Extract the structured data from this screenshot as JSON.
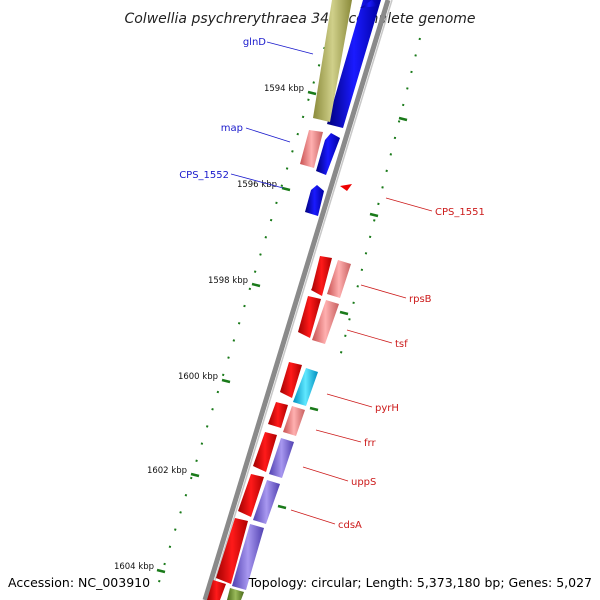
{
  "title": "Colwellia psychrerythraea 34H, complete genome",
  "footer": {
    "accession": "Accession: NC_003910",
    "topology": "Topology: circular; Length: 5,373,180 bp; Genes: 5,027"
  },
  "ticks": [
    "1594 kbp",
    "1596 kbp",
    "1598 kbp",
    "1600 kbp",
    "1602 kbp",
    "1604 kbp"
  ],
  "gene_labels": [
    {
      "name": "glnD",
      "strand": "forward",
      "color": "#1a1acc"
    },
    {
      "name": "map",
      "strand": "forward",
      "color": "#1a1acc"
    },
    {
      "name": "CPS_1552",
      "strand": "forward",
      "color": "#1a1acc"
    },
    {
      "name": "CPS_1551",
      "strand": "reverse",
      "color": "#cc1a1a"
    },
    {
      "name": "rpsB",
      "strand": "reverse",
      "color": "#cc1a1a"
    },
    {
      "name": "tsf",
      "strand": "reverse",
      "color": "#cc1a1a"
    },
    {
      "name": "pyrH",
      "strand": "reverse",
      "color": "#cc1a1a"
    },
    {
      "name": "frr",
      "strand": "reverse",
      "color": "#cc1a1a"
    },
    {
      "name": "uppS",
      "strand": "reverse",
      "color": "#cc1a1a"
    },
    {
      "name": "cdsA",
      "strand": "reverse",
      "color": "#cc1a1a"
    }
  ],
  "colors": {
    "forward_gene": "#0000ee",
    "reverse_gene": "#ee0000",
    "cog_olive": "#a8a84a",
    "cog_pink": "#ef8080",
    "cog_cyan": "#00c8f0",
    "cog_purple": "#7b68d8",
    "cog_green": "#6a8a2a",
    "tick_green": "#1a7a1a",
    "backbone": "#8a8a8a"
  }
}
